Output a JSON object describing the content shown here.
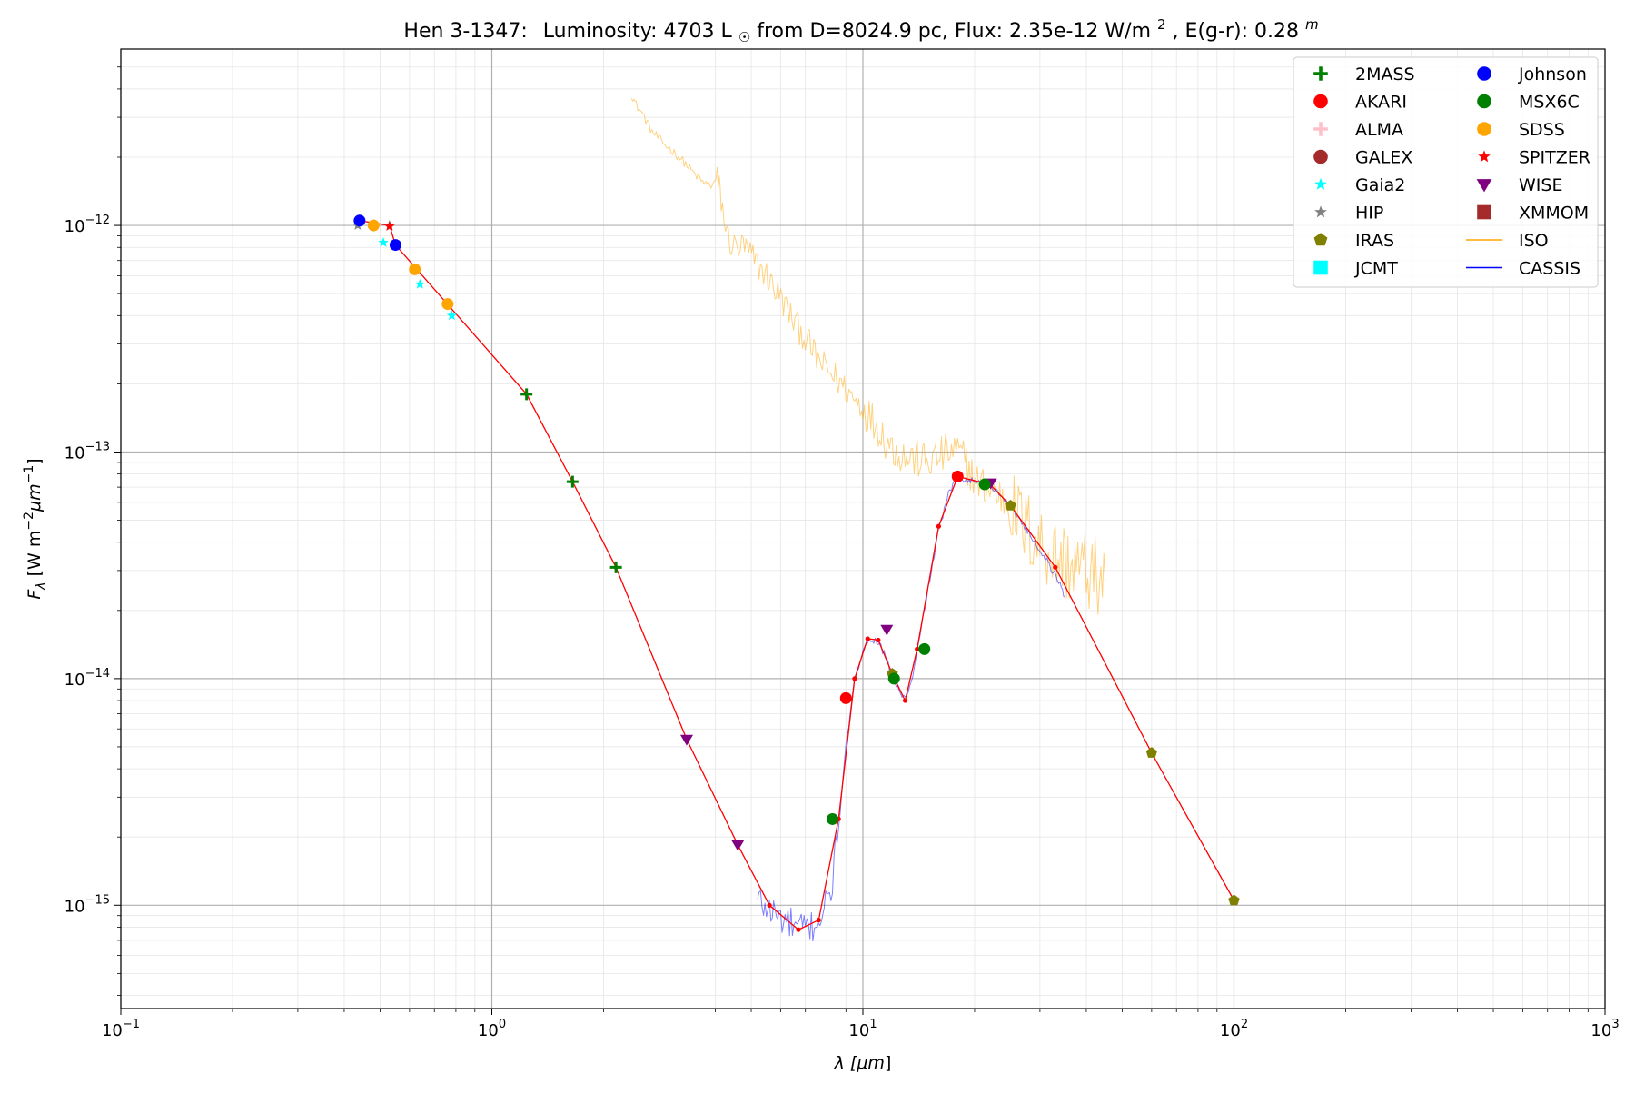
{
  "chart_data": {
    "type": "scatter",
    "title": {
      "object": "Hen 3-1347:",
      "lum_label": "Luminosity: 4703 L",
      "sun_symbol": "☉",
      "dist_flux": " from D=8024.9 pc, Flux: 2.35e-12 W/m",
      "flux_exp": "2",
      "ext_label": ", E(g-r): 0.28",
      "ext_exp": "m"
    },
    "xlabel": {
      "main": "λ [",
      "unit": "μm",
      "close": "]"
    },
    "ylabel": {
      "main": "F",
      "sub": "λ",
      "units": " [W m",
      "e1": "−2",
      "um": "μm",
      "e2": "−1",
      "close": "]"
    },
    "x_scale": "log",
    "y_scale": "log",
    "xlim": [
      0.1,
      1000
    ],
    "ylim": [
      3.5e-16,
      6e-12
    ],
    "x_ticks": [
      {
        "value": 0.1,
        "base": "10",
        "exp": "−1"
      },
      {
        "value": 1,
        "base": "10",
        "exp": "0"
      },
      {
        "value": 10,
        "base": "10",
        "exp": "1"
      },
      {
        "value": 100,
        "base": "10",
        "exp": "2"
      },
      {
        "value": 1000,
        "base": "10",
        "exp": "3"
      }
    ],
    "y_ticks": [
      {
        "value": 1e-12,
        "base": "10",
        "exp": "−12"
      },
      {
        "value": 1e-13,
        "base": "10",
        "exp": "−13"
      },
      {
        "value": 1e-14,
        "base": "10",
        "exp": "−14"
      },
      {
        "value": 1e-15,
        "base": "10",
        "exp": "−15"
      }
    ],
    "grid": true,
    "legend_position": "upper right",
    "legend": [
      {
        "name": "2MASS",
        "marker": "plus",
        "color": "#008000"
      },
      {
        "name": "AKARI",
        "marker": "circle",
        "color": "#ff0000"
      },
      {
        "name": "ALMA",
        "marker": "plus",
        "color": "#ffc0cb"
      },
      {
        "name": "GALEX",
        "marker": "circle",
        "color": "#a52a2a"
      },
      {
        "name": "Gaia2",
        "marker": "star",
        "color": "#00ffff"
      },
      {
        "name": "HIP",
        "marker": "star",
        "color": "#808080"
      },
      {
        "name": "IRAS",
        "marker": "pentagon",
        "color": "#808000"
      },
      {
        "name": "JCMT",
        "marker": "square",
        "color": "#00ffff"
      },
      {
        "name": "Johnson",
        "marker": "circle",
        "color": "#0000ff"
      },
      {
        "name": "MSX6C",
        "marker": "circle",
        "color": "#008000"
      },
      {
        "name": "SDSS",
        "marker": "circle",
        "color": "#ffa500"
      },
      {
        "name": "SPITZER",
        "marker": "star",
        "color": "#ff0000"
      },
      {
        "name": "WISE",
        "marker": "triangle_down",
        "color": "#800080"
      },
      {
        "name": "XMMOM",
        "marker": "square",
        "color": "#a52a2a"
      },
      {
        "name": "ISO",
        "marker": "line",
        "color": "#ffa500"
      },
      {
        "name": "CASSIS",
        "marker": "line",
        "color": "#0000ff"
      }
    ],
    "photometry": [
      {
        "name": "HIP",
        "marker": "star",
        "color": "#808080",
        "points": [
          [
            0.435,
            1e-12
          ],
          [
            0.53,
            1e-12
          ]
        ]
      },
      {
        "name": "Johnson",
        "marker": "circle",
        "color": "#0000ff",
        "points": [
          [
            0.44,
            1.05e-12
          ],
          [
            0.55,
            8.2e-13
          ]
        ]
      },
      {
        "name": "SDSS",
        "marker": "circle",
        "color": "#ffa500",
        "points": [
          [
            0.48,
            1e-12
          ],
          [
            0.62,
            6.4e-13
          ],
          [
            0.76,
            4.5e-13
          ]
        ]
      },
      {
        "name": "Gaia2",
        "marker": "star",
        "color": "#00ffff",
        "points": [
          [
            0.51,
            8.4e-13
          ],
          [
            0.64,
            5.5e-13
          ],
          [
            0.78,
            4e-13
          ]
        ]
      },
      {
        "name": "SPITZER",
        "marker": "star",
        "color": "#ff0000",
        "points": [
          [
            0.53,
            9.9e-13
          ]
        ]
      },
      {
        "name": "2MASS",
        "marker": "plus",
        "color": "#008000",
        "points": [
          [
            1.24,
            1.8e-13
          ],
          [
            1.65,
            7.4e-14
          ],
          [
            2.16,
            3.1e-14
          ]
        ]
      },
      {
        "name": "WISE",
        "marker": "triangle_down",
        "color": "#800080",
        "points": [
          [
            3.35,
            5.4e-15
          ],
          [
            4.6,
            1.85e-15
          ],
          [
            11.6,
            1.65e-14
          ],
          [
            22.1,
            7.3e-14
          ]
        ]
      },
      {
        "name": "AKARI",
        "marker": "circle",
        "color": "#ff0000",
        "points": [
          [
            9.0,
            8.2e-15
          ],
          [
            18.0,
            7.8e-14
          ]
        ]
      },
      {
        "name": "IRAS",
        "marker": "pentagon",
        "color": "#808000",
        "points": [
          [
            12.0,
            1.05e-14
          ],
          [
            25.0,
            5.8e-14
          ],
          [
            60.0,
            4.7e-15
          ],
          [
            100.0,
            1.05e-15
          ]
        ]
      },
      {
        "name": "MSX6C",
        "marker": "circle",
        "color": "#008000",
        "points": [
          [
            8.28,
            2.4e-15
          ],
          [
            12.13,
            1e-14
          ],
          [
            14.65,
            1.35e-14
          ],
          [
            21.3,
            7.2e-14
          ]
        ]
      }
    ],
    "model_line": {
      "color": "#ff0000",
      "points": [
        [
          0.44,
          1.05e-12
        ],
        [
          0.53,
          1e-12
        ],
        [
          0.55,
          8.2e-13
        ],
        [
          1.24,
          1.8e-13
        ],
        [
          1.65,
          7.4e-14
        ],
        [
          2.16,
          3.1e-14
        ],
        [
          3.35,
          5.4e-15
        ],
        [
          4.6,
          1.85e-15
        ],
        [
          5.6,
          1e-15
        ],
        [
          6.7,
          7.8e-16
        ],
        [
          7.6,
          8.6e-16
        ],
        [
          8.6,
          2.4e-15
        ],
        [
          9.5,
          1e-14
        ],
        [
          10.3,
          1.5e-14
        ],
        [
          11.0,
          1.48e-14
        ],
        [
          12.0,
          1.05e-14
        ],
        [
          13.0,
          8e-15
        ],
        [
          14.0,
          1.35e-14
        ],
        [
          16.0,
          4.7e-14
        ],
        [
          18.0,
          7.8e-14
        ],
        [
          22.0,
          7.2e-14
        ],
        [
          25.0,
          5.8e-14
        ],
        [
          33.0,
          3.1e-14
        ],
        [
          60.0,
          4.7e-15
        ],
        [
          100.0,
          1.05e-15
        ]
      ]
    },
    "iso_spectrum": {
      "name": "ISO",
      "color": "#ffa500",
      "points": [
        [
          2.38,
          3.8e-12
        ],
        [
          2.45,
          3.4e-12
        ],
        [
          2.55,
          3.1e-12
        ],
        [
          2.7,
          2.6e-12
        ],
        [
          2.9,
          2.3e-12
        ],
        [
          3.1,
          2.1e-12
        ],
        [
          3.3,
          1.9e-12
        ],
        [
          3.5,
          1.7e-12
        ],
        [
          3.7,
          1.55e-12
        ],
        [
          3.9,
          1.5e-12
        ],
        [
          4.05,
          1.6e-12
        ],
        [
          4.15,
          1.3e-12
        ],
        [
          4.3,
          9e-13
        ],
        [
          4.5,
          8e-13
        ],
        [
          4.8,
          8e-13
        ],
        [
          5.1,
          7e-13
        ],
        [
          5.5,
          6e-13
        ],
        [
          6.0,
          4.8e-13
        ],
        [
          6.5,
          3.8e-13
        ],
        [
          7.0,
          3.2e-13
        ],
        [
          7.5,
          2.6e-13
        ],
        [
          8.0,
          2.3e-13
        ],
        [
          8.5,
          2.1e-13
        ],
        [
          9.0,
          1.9e-13
        ],
        [
          9.5,
          1.7e-13
        ],
        [
          10.0,
          1.6e-13
        ],
        [
          10.5,
          1.4e-13
        ],
        [
          11.0,
          1.3e-13
        ],
        [
          11.5,
          1.15e-13
        ],
        [
          12.0,
          1.05e-13
        ],
        [
          12.5,
          1e-13
        ],
        [
          13.0,
          9.5e-14
        ],
        [
          14.0,
          9.3e-14
        ],
        [
          15.0,
          9e-14
        ],
        [
          16.0,
          9.5e-14
        ],
        [
          17.0,
          1e-13
        ],
        [
          18.0,
          1e-13
        ],
        [
          19.0,
          9e-14
        ],
        [
          20.0,
          7.5e-14
        ],
        [
          22.0,
          6.8e-14
        ],
        [
          24.0,
          6.2e-14
        ],
        [
          26.0,
          5.2e-14
        ],
        [
          28.0,
          4.5e-14
        ],
        [
          30.0,
          4e-14
        ],
        [
          33.0,
          3.5e-14
        ],
        [
          36.0,
          3.2e-14
        ],
        [
          40.0,
          3e-14
        ],
        [
          43.0,
          2.8e-14
        ],
        [
          45.0,
          2.7e-14
        ]
      ]
    },
    "cassis_spectrum": {
      "name": "CASSIS",
      "color": "#0000ff",
      "points": [
        [
          5.2,
          1.05e-15
        ],
        [
          5.6,
          9.5e-16
        ],
        [
          6.0,
          8.8e-16
        ],
        [
          6.4,
          8.2e-16
        ],
        [
          6.7,
          7.8e-16
        ],
        [
          7.0,
          7.9e-16
        ],
        [
          7.4,
          8.2e-16
        ],
        [
          7.8,
          9.2e-16
        ],
        [
          8.2,
          1.15e-15
        ],
        [
          8.6,
          2.2e-15
        ],
        [
          9.0,
          5e-15
        ],
        [
          9.5,
          9.8e-15
        ],
        [
          10.0,
          1.35e-14
        ],
        [
          10.5,
          1.5e-14
        ],
        [
          11.0,
          1.45e-14
        ],
        [
          11.5,
          1.25e-14
        ],
        [
          12.0,
          1.02e-14
        ],
        [
          12.5,
          8.8e-15
        ],
        [
          13.0,
          8.2e-15
        ],
        [
          13.5,
          9.5e-15
        ],
        [
          14.0,
          1.3e-14
        ],
        [
          15.0,
          2.5e-14
        ],
        [
          16.0,
          4.5e-14
        ],
        [
          17.0,
          6.5e-14
        ],
        [
          18.0,
          7.8e-14
        ],
        [
          19.0,
          7.6e-14
        ],
        [
          20.0,
          7.4e-14
        ],
        [
          22.0,
          7.2e-14
        ],
        [
          25.0,
          5.8e-14
        ],
        [
          28.0,
          4.4e-14
        ],
        [
          31.0,
          3.4e-14
        ],
        [
          34.0,
          2.6e-14
        ],
        [
          35.0,
          2.3e-14
        ]
      ]
    }
  }
}
